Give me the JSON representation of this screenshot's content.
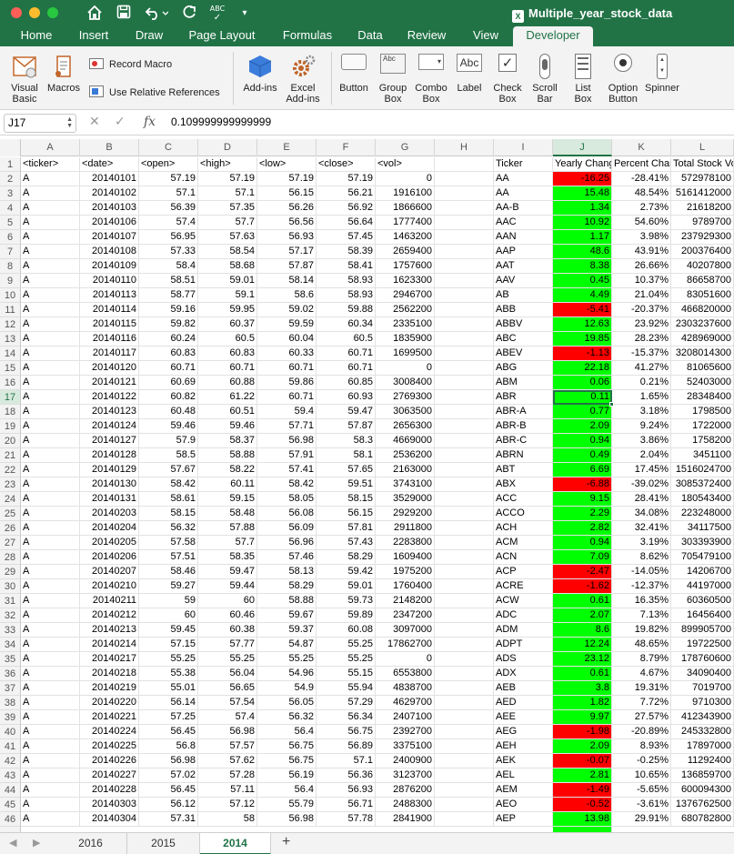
{
  "window": {
    "title": "Multiple_year_stock_data",
    "file_icon": "excel-file-icon"
  },
  "toolbar_icons": [
    "home-icon",
    "save-icon",
    "undo-icon",
    "redo-icon",
    "spellcheck-icon",
    "customize-icon"
  ],
  "spellcheck_label": "ABC",
  "ribbon_tabs": [
    "Home",
    "Insert",
    "Draw",
    "Page Layout",
    "Formulas",
    "Data",
    "Review",
    "View",
    "Developer"
  ],
  "active_ribbon_tab": "Developer",
  "ribbon": {
    "visual_basic": "Visual\nBasic",
    "macros": "Macros",
    "record_macro": "Record Macro",
    "use_relative_references": "Use Relative References",
    "add_ins": "Add-ins",
    "excel_add_ins": "Excel\nAdd-ins",
    "button": "Button",
    "group_box": "Group\nBox",
    "combo_box": "Combo\nBox",
    "label": "Label",
    "check_box": "Check\nBox",
    "scroll_bar": "Scroll\nBar",
    "list_box": "List\nBox",
    "option_button": "Option\nButton",
    "spinner": "Spinner",
    "group_box_icon_text": "Abc",
    "label_icon_text": "Abc"
  },
  "formula_bar": {
    "name_box": "J17",
    "cancel_icon": "cancel-icon",
    "enter_icon": "check-icon",
    "fx_label": "fx",
    "value": "0.109999999999999"
  },
  "columns": [
    "A",
    "B",
    "C",
    "D",
    "E",
    "F",
    "G",
    "H",
    "I",
    "J",
    "K",
    "L"
  ],
  "selected_column": "J",
  "selected_row": 17,
  "colors": {
    "accent": "#217346",
    "positive_fill": "#00ff00",
    "negative_fill": "#ff0000"
  },
  "header_row": {
    "row": 1,
    "cells": [
      "<ticker>",
      "<date>",
      "<open>",
      "<high>",
      "<low>",
      "<close>",
      "<vol>",
      "",
      "Ticker",
      "Yearly Chang",
      "Percent Char",
      "Total Stock Vo"
    ]
  },
  "data_rows": [
    {
      "row": 2,
      "ticker": "A",
      "date": "20140101",
      "open": "57.19",
      "high": "57.19",
      "low": "57.19",
      "close": "57.19",
      "vol": "0",
      "sym": "AA",
      "change": "-16.25",
      "sign": "neg",
      "pct": "-28.41%",
      "total": "572978100"
    },
    {
      "row": 3,
      "ticker": "A",
      "date": "20140102",
      "open": "57.1",
      "high": "57.1",
      "low": "56.15",
      "close": "56.21",
      "vol": "1916100",
      "sym": "AA",
      "change": "15.48",
      "sign": "pos",
      "pct": "48.54%",
      "total": "5161412000"
    },
    {
      "row": 4,
      "ticker": "A",
      "date": "20140103",
      "open": "56.39",
      "high": "57.35",
      "low": "56.26",
      "close": "56.92",
      "vol": "1866600",
      "sym": "AA-B",
      "change": "1.34",
      "sign": "pos",
      "pct": "2.73%",
      "total": "21618200"
    },
    {
      "row": 5,
      "ticker": "A",
      "date": "20140106",
      "open": "57.4",
      "high": "57.7",
      "low": "56.56",
      "close": "56.64",
      "vol": "1777400",
      "sym": "AAC",
      "change": "10.92",
      "sign": "pos",
      "pct": "54.60%",
      "total": "9789700"
    },
    {
      "row": 6,
      "ticker": "A",
      "date": "20140107",
      "open": "56.95",
      "high": "57.63",
      "low": "56.93",
      "close": "57.45",
      "vol": "1463200",
      "sym": "AAN",
      "change": "1.17",
      "sign": "pos",
      "pct": "3.98%",
      "total": "237929300"
    },
    {
      "row": 7,
      "ticker": "A",
      "date": "20140108",
      "open": "57.33",
      "high": "58.54",
      "low": "57.17",
      "close": "58.39",
      "vol": "2659400",
      "sym": "AAP",
      "change": "48.6",
      "sign": "pos",
      "pct": "43.91%",
      "total": "200376400"
    },
    {
      "row": 8,
      "ticker": "A",
      "date": "20140109",
      "open": "58.4",
      "high": "58.68",
      "low": "57.87",
      "close": "58.41",
      "vol": "1757600",
      "sym": "AAT",
      "change": "8.38",
      "sign": "pos",
      "pct": "26.66%",
      "total": "40207800"
    },
    {
      "row": 9,
      "ticker": "A",
      "date": "20140110",
      "open": "58.51",
      "high": "59.01",
      "low": "58.14",
      "close": "58.93",
      "vol": "1623300",
      "sym": "AAV",
      "change": "0.45",
      "sign": "pos",
      "pct": "10.37%",
      "total": "86658700"
    },
    {
      "row": 10,
      "ticker": "A",
      "date": "20140113",
      "open": "58.77",
      "high": "59.1",
      "low": "58.6",
      "close": "58.93",
      "vol": "2946700",
      "sym": "AB",
      "change": "4.49",
      "sign": "pos",
      "pct": "21.04%",
      "total": "83051600"
    },
    {
      "row": 11,
      "ticker": "A",
      "date": "20140114",
      "open": "59.16",
      "high": "59.95",
      "low": "59.02",
      "close": "59.88",
      "vol": "2562200",
      "sym": "ABB",
      "change": "-5.41",
      "sign": "neg",
      "pct": "-20.37%",
      "total": "466820000"
    },
    {
      "row": 12,
      "ticker": "A",
      "date": "20140115",
      "open": "59.82",
      "high": "60.37",
      "low": "59.59",
      "close": "60.34",
      "vol": "2335100",
      "sym": "ABBV",
      "change": "12.63",
      "sign": "pos",
      "pct": "23.92%",
      "total": "2303237600"
    },
    {
      "row": 13,
      "ticker": "A",
      "date": "20140116",
      "open": "60.24",
      "high": "60.5",
      "low": "60.04",
      "close": "60.5",
      "vol": "1835900",
      "sym": "ABC",
      "change": "19.85",
      "sign": "pos",
      "pct": "28.23%",
      "total": "428969000"
    },
    {
      "row": 14,
      "ticker": "A",
      "date": "20140117",
      "open": "60.83",
      "high": "60.83",
      "low": "60.33",
      "close": "60.71",
      "vol": "1699500",
      "sym": "ABEV",
      "change": "-1.13",
      "sign": "neg",
      "pct": "-15.37%",
      "total": "3208014300"
    },
    {
      "row": 15,
      "ticker": "A",
      "date": "20140120",
      "open": "60.71",
      "high": "60.71",
      "low": "60.71",
      "close": "60.71",
      "vol": "0",
      "sym": "ABG",
      "change": "22.18",
      "sign": "pos",
      "pct": "41.27%",
      "total": "81065600"
    },
    {
      "row": 16,
      "ticker": "A",
      "date": "20140121",
      "open": "60.69",
      "high": "60.88",
      "low": "59.86",
      "close": "60.85",
      "vol": "3008400",
      "sym": "ABM",
      "change": "0.06",
      "sign": "pos",
      "pct": "0.21%",
      "total": "52403000"
    },
    {
      "row": 17,
      "ticker": "A",
      "date": "20140122",
      "open": "60.82",
      "high": "61.22",
      "low": "60.71",
      "close": "60.93",
      "vol": "2769300",
      "sym": "ABR",
      "change": "0.11",
      "sign": "pos",
      "pct": "1.65%",
      "total": "28348400"
    },
    {
      "row": 18,
      "ticker": "A",
      "date": "20140123",
      "open": "60.48",
      "high": "60.51",
      "low": "59.4",
      "close": "59.47",
      "vol": "3063500",
      "sym": "ABR-A",
      "change": "0.77",
      "sign": "pos",
      "pct": "3.18%",
      "total": "1798500"
    },
    {
      "row": 19,
      "ticker": "A",
      "date": "20140124",
      "open": "59.46",
      "high": "59.46",
      "low": "57.71",
      "close": "57.87",
      "vol": "2656300",
      "sym": "ABR-B",
      "change": "2.09",
      "sign": "pos",
      "pct": "9.24%",
      "total": "1722000"
    },
    {
      "row": 20,
      "ticker": "A",
      "date": "20140127",
      "open": "57.9",
      "high": "58.37",
      "low": "56.98",
      "close": "58.3",
      "vol": "4669000",
      "sym": "ABR-C",
      "change": "0.94",
      "sign": "pos",
      "pct": "3.86%",
      "total": "1758200"
    },
    {
      "row": 21,
      "ticker": "A",
      "date": "20140128",
      "open": "58.5",
      "high": "58.88",
      "low": "57.91",
      "close": "58.1",
      "vol": "2536200",
      "sym": "ABRN",
      "change": "0.49",
      "sign": "pos",
      "pct": "2.04%",
      "total": "3451100"
    },
    {
      "row": 22,
      "ticker": "A",
      "date": "20140129",
      "open": "57.67",
      "high": "58.22",
      "low": "57.41",
      "close": "57.65",
      "vol": "2163000",
      "sym": "ABT",
      "change": "6.69",
      "sign": "pos",
      "pct": "17.45%",
      "total": "1516024700"
    },
    {
      "row": 23,
      "ticker": "A",
      "date": "20140130",
      "open": "58.42",
      "high": "60.11",
      "low": "58.42",
      "close": "59.51",
      "vol": "3743100",
      "sym": "ABX",
      "change": "-6.88",
      "sign": "neg",
      "pct": "-39.02%",
      "total": "3085372400"
    },
    {
      "row": 24,
      "ticker": "A",
      "date": "20140131",
      "open": "58.61",
      "high": "59.15",
      "low": "58.05",
      "close": "58.15",
      "vol": "3529000",
      "sym": "ACC",
      "change": "9.15",
      "sign": "pos",
      "pct": "28.41%",
      "total": "180543400"
    },
    {
      "row": 25,
      "ticker": "A",
      "date": "20140203",
      "open": "58.15",
      "high": "58.48",
      "low": "56.08",
      "close": "56.15",
      "vol": "2929200",
      "sym": "ACCO",
      "change": "2.29",
      "sign": "pos",
      "pct": "34.08%",
      "total": "223248000"
    },
    {
      "row": 26,
      "ticker": "A",
      "date": "20140204",
      "open": "56.32",
      "high": "57.88",
      "low": "56.09",
      "close": "57.81",
      "vol": "2911800",
      "sym": "ACH",
      "change": "2.82",
      "sign": "pos",
      "pct": "32.41%",
      "total": "34117500"
    },
    {
      "row": 27,
      "ticker": "A",
      "date": "20140205",
      "open": "57.58",
      "high": "57.7",
      "low": "56.96",
      "close": "57.43",
      "vol": "2283800",
      "sym": "ACM",
      "change": "0.94",
      "sign": "pos",
      "pct": "3.19%",
      "total": "303393900"
    },
    {
      "row": 28,
      "ticker": "A",
      "date": "20140206",
      "open": "57.51",
      "high": "58.35",
      "low": "57.46",
      "close": "58.29",
      "vol": "1609400",
      "sym": "ACN",
      "change": "7.09",
      "sign": "pos",
      "pct": "8.62%",
      "total": "705479100"
    },
    {
      "row": 29,
      "ticker": "A",
      "date": "20140207",
      "open": "58.46",
      "high": "59.47",
      "low": "58.13",
      "close": "59.42",
      "vol": "1975200",
      "sym": "ACP",
      "change": "-2.47",
      "sign": "neg",
      "pct": "-14.05%",
      "total": "14206700"
    },
    {
      "row": 30,
      "ticker": "A",
      "date": "20140210",
      "open": "59.27",
      "high": "59.44",
      "low": "58.29",
      "close": "59.01",
      "vol": "1760400",
      "sym": "ACRE",
      "change": "-1.62",
      "sign": "neg",
      "pct": "-12.37%",
      "total": "44197000"
    },
    {
      "row": 31,
      "ticker": "A",
      "date": "20140211",
      "open": "59",
      "high": "60",
      "low": "58.88",
      "close": "59.73",
      "vol": "2148200",
      "sym": "ACW",
      "change": "0.61",
      "sign": "pos",
      "pct": "16.35%",
      "total": "60360500"
    },
    {
      "row": 32,
      "ticker": "A",
      "date": "20140212",
      "open": "60",
      "high": "60.46",
      "low": "59.67",
      "close": "59.89",
      "vol": "2347200",
      "sym": "ADC",
      "change": "2.07",
      "sign": "pos",
      "pct": "7.13%",
      "total": "16456400"
    },
    {
      "row": 33,
      "ticker": "A",
      "date": "20140213",
      "open": "59.45",
      "high": "60.38",
      "low": "59.37",
      "close": "60.08",
      "vol": "3097000",
      "sym": "ADM",
      "change": "8.6",
      "sign": "pos",
      "pct": "19.82%",
      "total": "899905700"
    },
    {
      "row": 34,
      "ticker": "A",
      "date": "20140214",
      "open": "57.15",
      "high": "57.77",
      "low": "54.87",
      "close": "55.25",
      "vol": "17862700",
      "sym": "ADPT",
      "change": "12.24",
      "sign": "pos",
      "pct": "48.65%",
      "total": "19722500"
    },
    {
      "row": 35,
      "ticker": "A",
      "date": "20140217",
      "open": "55.25",
      "high": "55.25",
      "low": "55.25",
      "close": "55.25",
      "vol": "0",
      "sym": "ADS",
      "change": "23.12",
      "sign": "pos",
      "pct": "8.79%",
      "total": "178760600"
    },
    {
      "row": 36,
      "ticker": "A",
      "date": "20140218",
      "open": "55.38",
      "high": "56.04",
      "low": "54.96",
      "close": "55.15",
      "vol": "6553800",
      "sym": "ADX",
      "change": "0.61",
      "sign": "pos",
      "pct": "4.67%",
      "total": "34090400"
    },
    {
      "row": 37,
      "ticker": "A",
      "date": "20140219",
      "open": "55.01",
      "high": "56.65",
      "low": "54.9",
      "close": "55.94",
      "vol": "4838700",
      "sym": "AEB",
      "change": "3.8",
      "sign": "pos",
      "pct": "19.31%",
      "total": "7019700"
    },
    {
      "row": 38,
      "ticker": "A",
      "date": "20140220",
      "open": "56.14",
      "high": "57.54",
      "low": "56.05",
      "close": "57.29",
      "vol": "4629700",
      "sym": "AED",
      "change": "1.82",
      "sign": "pos",
      "pct": "7.72%",
      "total": "9710300"
    },
    {
      "row": 39,
      "ticker": "A",
      "date": "20140221",
      "open": "57.25",
      "high": "57.4",
      "low": "56.32",
      "close": "56.34",
      "vol": "2407100",
      "sym": "AEE",
      "change": "9.97",
      "sign": "pos",
      "pct": "27.57%",
      "total": "412343900"
    },
    {
      "row": 40,
      "ticker": "A",
      "date": "20140224",
      "open": "56.45",
      "high": "56.98",
      "low": "56.4",
      "close": "56.75",
      "vol": "2392700",
      "sym": "AEG",
      "change": "-1.98",
      "sign": "neg",
      "pct": "-20.89%",
      "total": "245332800"
    },
    {
      "row": 41,
      "ticker": "A",
      "date": "20140225",
      "open": "56.8",
      "high": "57.57",
      "low": "56.75",
      "close": "56.89",
      "vol": "3375100",
      "sym": "AEH",
      "change": "2.09",
      "sign": "pos",
      "pct": "8.93%",
      "total": "17897000"
    },
    {
      "row": 42,
      "ticker": "A",
      "date": "20140226",
      "open": "56.98",
      "high": "57.62",
      "low": "56.75",
      "close": "57.1",
      "vol": "2400900",
      "sym": "AEK",
      "change": "-0.07",
      "sign": "neg",
      "pct": "-0.25%",
      "total": "11292400"
    },
    {
      "row": 43,
      "ticker": "A",
      "date": "20140227",
      "open": "57.02",
      "high": "57.28",
      "low": "56.19",
      "close": "56.36",
      "vol": "3123700",
      "sym": "AEL",
      "change": "2.81",
      "sign": "pos",
      "pct": "10.65%",
      "total": "136859700"
    },
    {
      "row": 44,
      "ticker": "A",
      "date": "20140228",
      "open": "56.45",
      "high": "57.11",
      "low": "56.4",
      "close": "56.93",
      "vol": "2876200",
      "sym": "AEM",
      "change": "-1.49",
      "sign": "neg",
      "pct": "-5.65%",
      "total": "600094300"
    },
    {
      "row": 45,
      "ticker": "A",
      "date": "20140303",
      "open": "56.12",
      "high": "57.12",
      "low": "55.79",
      "close": "56.71",
      "vol": "2488300",
      "sym": "AEO",
      "change": "-0.52",
      "sign": "neg",
      "pct": "-3.61%",
      "total": "1376762500"
    },
    {
      "row": 46,
      "ticker": "A",
      "date": "20140304",
      "open": "57.31",
      "high": "58",
      "low": "56.98",
      "close": "57.78",
      "vol": "2841900",
      "sym": "AEP",
      "change": "13.98",
      "sign": "pos",
      "pct": "29.91%",
      "total": "680782800"
    }
  ],
  "sheet_tabs": [
    "2016",
    "2015",
    "2014"
  ],
  "active_sheet": "2014",
  "sheet_nav_icons": [
    "scroll-left-icon",
    "scroll-right-icon"
  ],
  "add_sheet_label": "+"
}
